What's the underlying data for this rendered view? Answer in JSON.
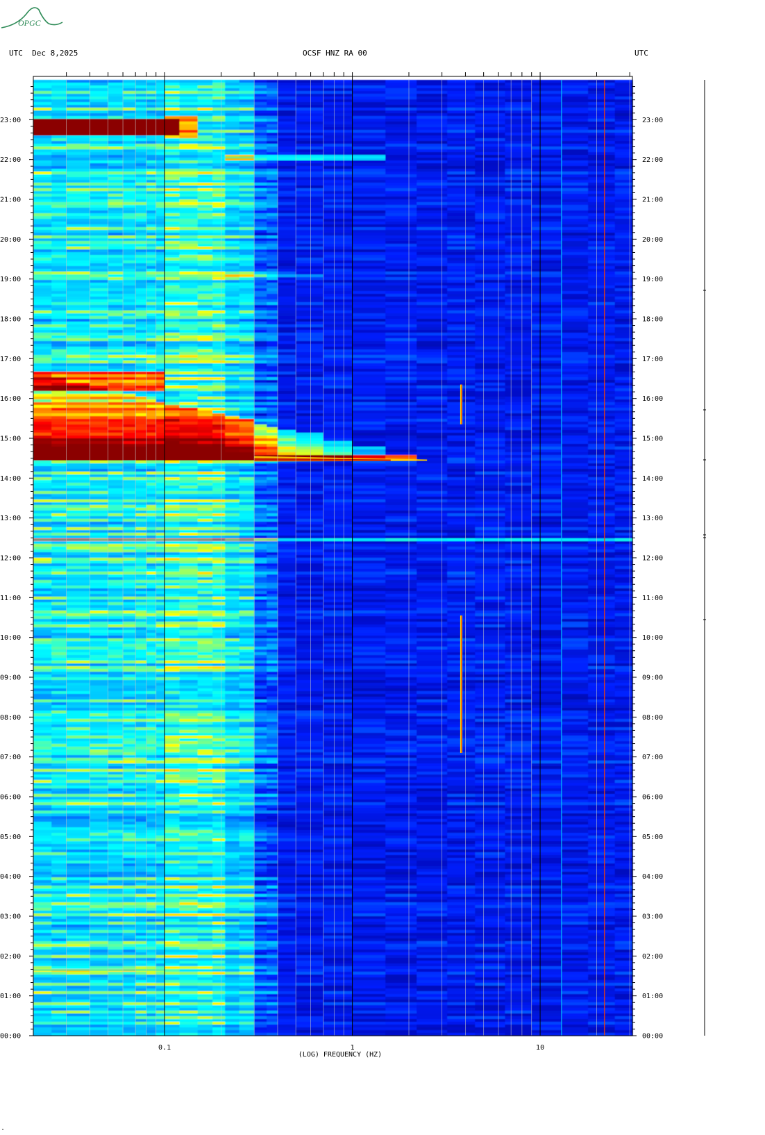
{
  "logo": {
    "text": "OPGC",
    "color": "#2e8b57"
  },
  "header": {
    "left": "UTC  Dec 8,2025",
    "center": "OCSF HNZ RA 00",
    "right": "UTC"
  },
  "corner_mark": "\"",
  "chart_data": {
    "type": "heatmap",
    "title": "OCSF HNZ RA 00",
    "date": "Dec 8,2025",
    "timezone": "UTC",
    "xlabel": "(LOG) FREQUENCY (HZ)",
    "ylabel": "",
    "x_scale": "log",
    "xlim": [
      0.02,
      31
    ],
    "ylim": [
      0,
      24
    ],
    "x_ticks": [
      0.1,
      1,
      10
    ],
    "x_tick_labels": [
      "0.1",
      "1",
      "10"
    ],
    "y_ticks": [
      0,
      1,
      2,
      3,
      4,
      5,
      6,
      7,
      8,
      9,
      10,
      11,
      12,
      13,
      14,
      15,
      16,
      17,
      18,
      19,
      20,
      21,
      22,
      23
    ],
    "y_tick_labels": [
      "00:00",
      "01:00",
      "02:00",
      "03:00",
      "04:00",
      "05:00",
      "06:00",
      "07:00",
      "08:00",
      "09:00",
      "10:00",
      "11:00",
      "12:00",
      "13:00",
      "14:00",
      "15:00",
      "16:00",
      "17:00",
      "18:00",
      "19:00",
      "20:00",
      "21:00",
      "22:00",
      "23:00"
    ],
    "gridlines_hz": [
      0.03,
      0.04,
      0.05,
      0.06,
      0.07,
      0.08,
      0.09,
      0.2,
      0.3,
      0.4,
      0.5,
      0.6,
      0.7,
      0.8,
      0.9,
      2,
      3,
      4,
      5,
      6,
      7,
      8,
      9,
      20,
      30
    ],
    "colorscale": [
      "#0000a0",
      "#0020ff",
      "#00a0ff",
      "#00ffff",
      "#ffff00",
      "#ff8000",
      "#ff0000",
      "#8b0000"
    ],
    "background_level": "#0a28d6",
    "events": [
      {
        "name": "large event",
        "start_hour": 14.45,
        "decay_end_hour": 16.0,
        "max_hz": 2.5,
        "color": "#8b0000"
      },
      {
        "name": "event",
        "start_hour": 22.65,
        "decay_end_hour": 23.0,
        "max_hz": 0.12,
        "color": "#8b0000"
      },
      {
        "name": "tremor line",
        "freq_hz": 3.8,
        "start_hour": 7.1,
        "end_hour": 10.55,
        "color": "#ffff00"
      },
      {
        "name": "tremor line",
        "freq_hz": 3.8,
        "start_hour": 15.35,
        "end_hour": 16.35,
        "color": "#ffff00"
      },
      {
        "name": "band",
        "hour": 22.05,
        "min_hz": 0.2,
        "max_hz": 1.5,
        "color": "#00ffff"
      },
      {
        "name": "band",
        "hour": 12.45,
        "min_hz": 0.02,
        "max_hz": 31,
        "color": "#00e0ff"
      },
      {
        "name": "band",
        "hour": 1.65,
        "min_hz": 0.02,
        "max_hz": 0.1,
        "color": "#00e0ff"
      },
      {
        "name": "persistent line",
        "freq_hz": 22,
        "start_hour": 0,
        "end_hour": 24,
        "color": "#ff4000"
      },
      {
        "name": "persistent line",
        "freq_hz": 13,
        "start_hour": 0,
        "end_hour": 24,
        "color": "#00c0ff"
      }
    ]
  }
}
